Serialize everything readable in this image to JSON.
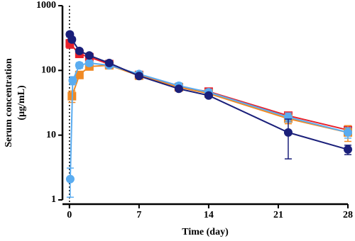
{
  "chart_data": {
    "type": "line",
    "log_y": true,
    "xlabel": "Time (day)",
    "ylabel": [
      "Serum concentration",
      "(µg/mL)"
    ],
    "xlim": [
      -0.7,
      28
    ],
    "xticks": [
      0,
      7,
      14,
      21,
      28
    ],
    "ylim": [
      1,
      1000
    ],
    "yticks": [
      1,
      10,
      100,
      1000
    ],
    "vline": 0,
    "series": [
      {
        "color": "#e8202a",
        "marker": "square",
        "x": [
          0.04,
          1,
          2,
          4,
          7,
          11,
          14,
          22,
          28
        ],
        "values": [
          260,
          180,
          160,
          125,
          85,
          55,
          47,
          20,
          12
        ],
        "errors": [
          40,
          20,
          15,
          10,
          8,
          6,
          5,
          2.5,
          2
        ]
      },
      {
        "color": "#f08a24",
        "marker": "square",
        "x": [
          0.25,
          1,
          2,
          4,
          7,
          11,
          14,
          22,
          28
        ],
        "values": [
          40,
          85,
          115,
          120,
          83,
          55,
          44,
          18,
          11
        ],
        "errors": [
          8,
          10,
          12,
          10,
          8,
          6,
          5,
          3,
          3
        ]
      },
      {
        "color": "#5aacf0",
        "marker": "circle",
        "x": [
          0.08,
          0.33,
          1,
          2,
          4,
          7,
          11,
          14,
          22,
          28
        ],
        "values": [
          2.1,
          70,
          120,
          130,
          120,
          88,
          58,
          46,
          19,
          11
        ],
        "errors": [
          1,
          10,
          12,
          12,
          10,
          8,
          6,
          5,
          3,
          2
        ]
      },
      {
        "color": "#1a1f7a",
        "marker": "circle",
        "x": [
          0.04,
          0.25,
          1,
          2,
          4,
          7,
          11,
          14,
          22,
          28
        ],
        "values": [
          360,
          300,
          200,
          170,
          130,
          82,
          52,
          41,
          11,
          6
        ],
        "errors": [
          30,
          25,
          15,
          12,
          10,
          6,
          4,
          3,
          6.7,
          1
        ]
      }
    ]
  }
}
